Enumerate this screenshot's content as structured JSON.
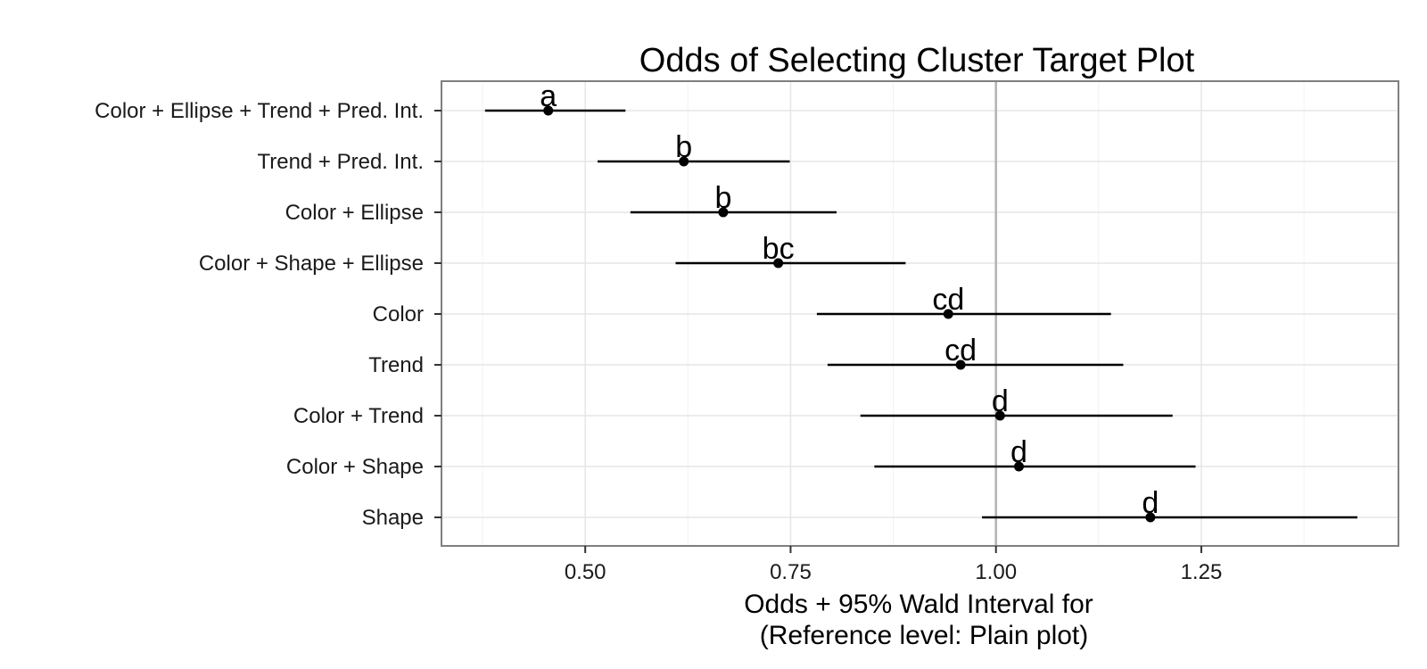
{
  "chart_data": {
    "type": "scatter",
    "title": "Odds of Selecting Cluster Target Plot",
    "xlabel_lines": [
      "Odds + 95% Wald Interval for",
      "(Reference level: Plain plot)"
    ],
    "ylabel": "",
    "xlim": [
      0.325,
      1.49
    ],
    "xticks": [
      {
        "value": 0.5,
        "label": "0.50"
      },
      {
        "value": 0.75,
        "label": "0.75"
      },
      {
        "value": 1.0,
        "label": "1.00"
      },
      {
        "value": 1.25,
        "label": "1.25"
      }
    ],
    "reference_line": 1.0,
    "grid": true,
    "points": [
      {
        "category": "Color + Ellipse + Trend + Pred. Int.",
        "estimate": 0.455,
        "lower": 0.378,
        "upper": 0.549,
        "group": "a"
      },
      {
        "category": "Trend + Pred. Int.",
        "estimate": 0.62,
        "lower": 0.515,
        "upper": 0.749,
        "group": "b"
      },
      {
        "category": "Color + Ellipse",
        "estimate": 0.668,
        "lower": 0.555,
        "upper": 0.806,
        "group": "b"
      },
      {
        "category": "Color + Shape + Ellipse",
        "estimate": 0.735,
        "lower": 0.61,
        "upper": 0.89,
        "group": "bc"
      },
      {
        "category": "Color",
        "estimate": 0.942,
        "lower": 0.782,
        "upper": 1.14,
        "group": "cd"
      },
      {
        "category": "Trend",
        "estimate": 0.957,
        "lower": 0.795,
        "upper": 1.155,
        "group": "cd"
      },
      {
        "category": "Color + Trend",
        "estimate": 1.005,
        "lower": 0.835,
        "upper": 1.215,
        "group": "d"
      },
      {
        "category": "Color + Shape",
        "estimate": 1.028,
        "lower": 0.852,
        "upper": 1.243,
        "group": "d"
      },
      {
        "category": "Shape",
        "estimate": 1.188,
        "lower": 0.983,
        "upper": 1.44,
        "group": "d"
      }
    ]
  }
}
